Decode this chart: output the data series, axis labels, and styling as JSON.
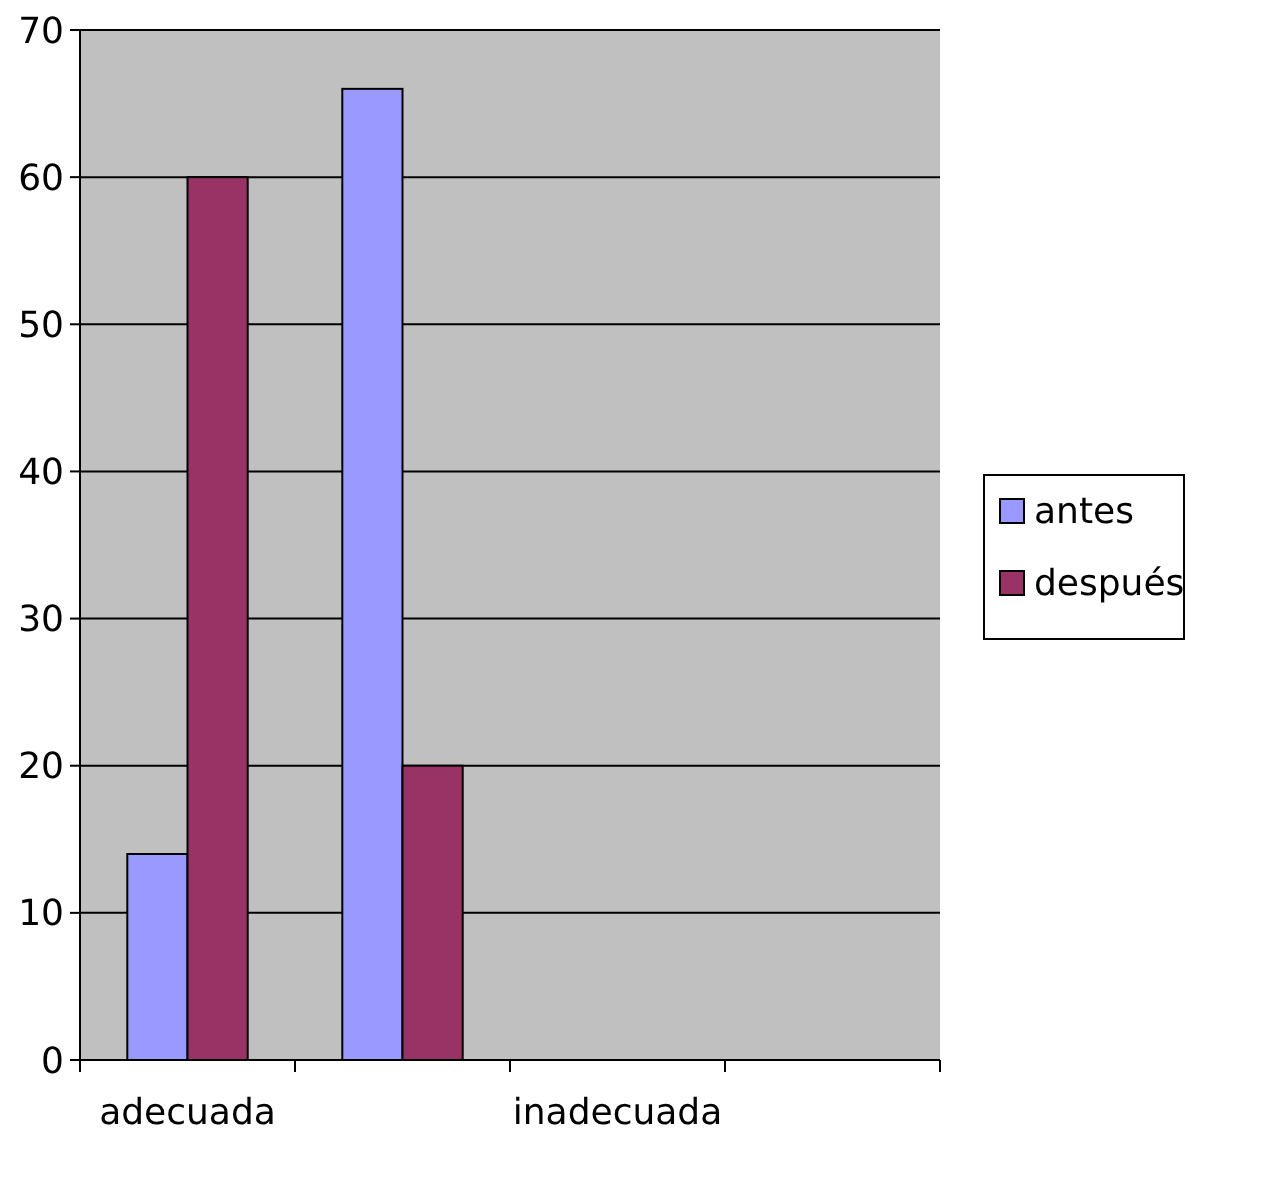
{
  "chart_data": {
    "type": "bar",
    "categories": [
      "adecuada",
      null,
      "inadecuada",
      null
    ],
    "series": [
      {
        "name": "antes",
        "color": "#9999ff",
        "values": [
          14,
          66,
          null,
          null
        ]
      },
      {
        "name": "después",
        "color": "#993366",
        "values": [
          60,
          20,
          null,
          null
        ]
      }
    ],
    "ylim": [
      0,
      70
    ],
    "yticks": [
      0,
      10,
      20,
      30,
      40,
      50,
      60,
      70
    ],
    "grid": "y",
    "legend": "right"
  }
}
